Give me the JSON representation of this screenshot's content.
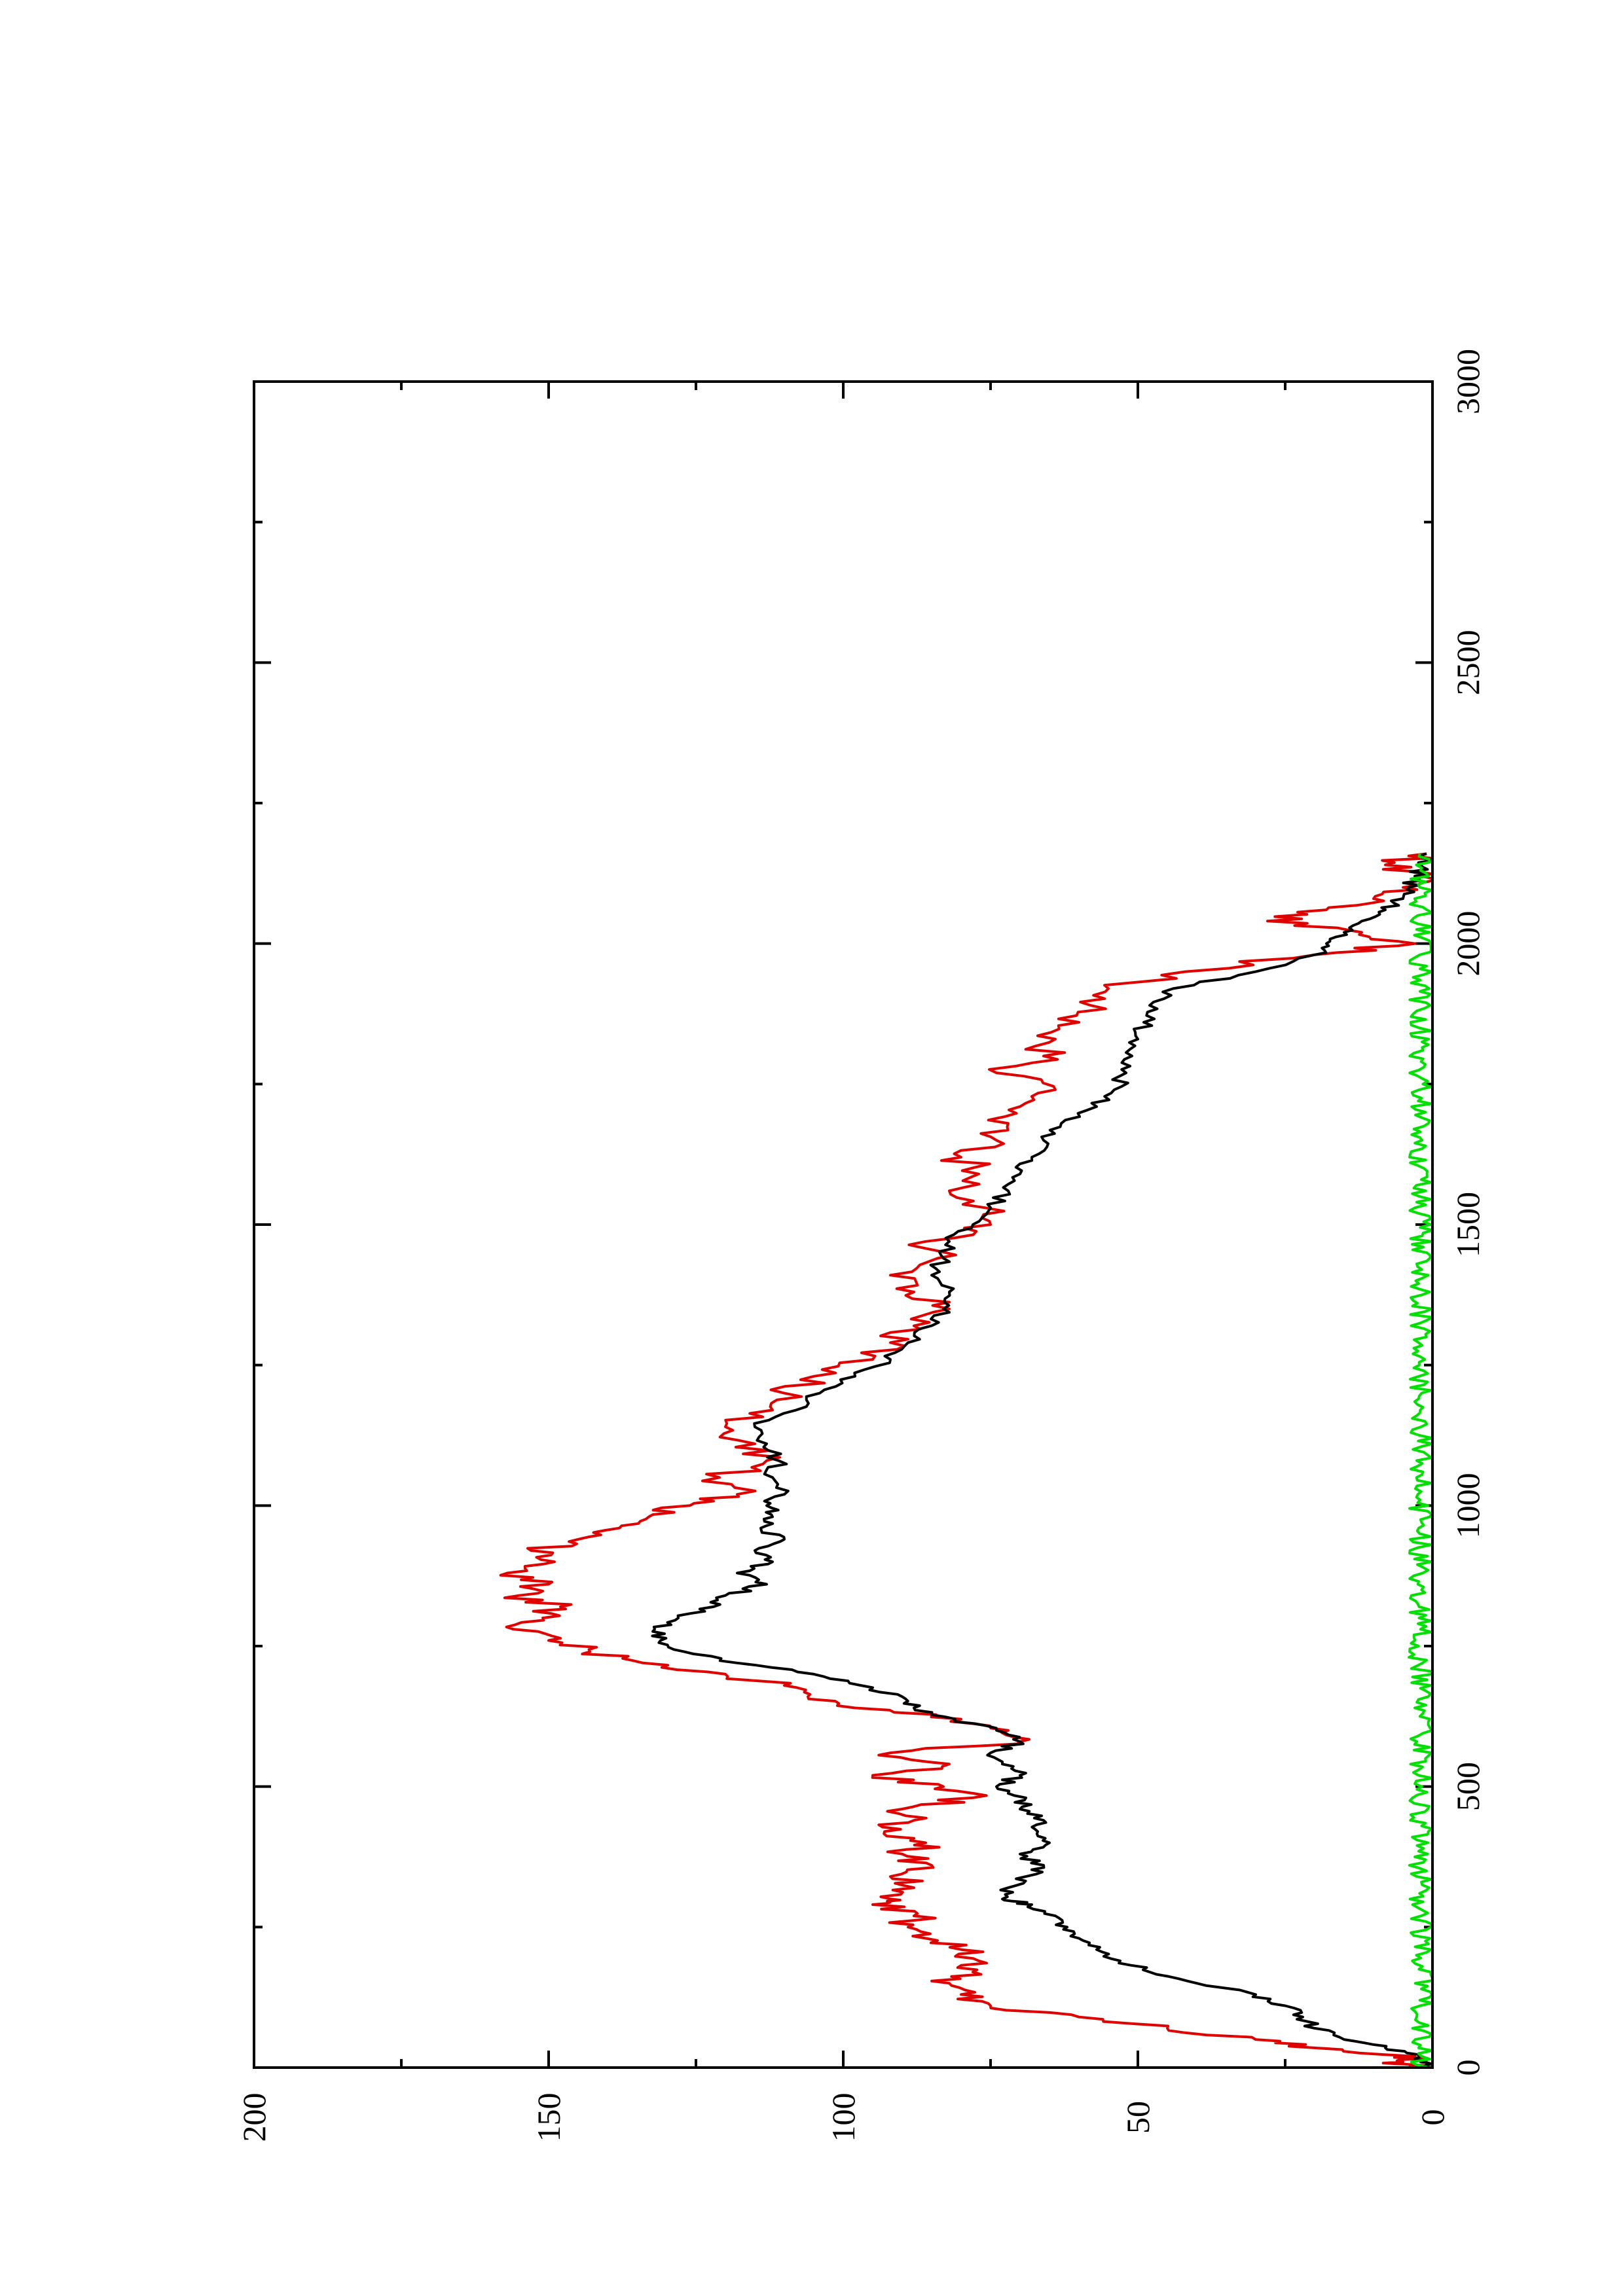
{
  "chart_data": {
    "type": "line",
    "orientation": "rotated-90-ccw",
    "xlim": [
      0,
      3000
    ],
    "ylim": [
      0,
      200
    ],
    "x_ticks": [
      "0",
      "500",
      "1000",
      "1500",
      "2000",
      "2500",
      "3000"
    ],
    "x_tick_values": [
      0,
      500,
      1000,
      1500,
      2000,
      2500,
      3000
    ],
    "x_minor_ticks": [
      250,
      750,
      1250,
      1750,
      2250,
      2750
    ],
    "y_ticks": [
      "0",
      "50",
      "100",
      "150",
      "200"
    ],
    "y_tick_values": [
      0,
      50,
      100,
      150,
      200
    ],
    "y_minor_ticks": [
      25,
      75,
      125,
      175
    ],
    "grid": false,
    "legend": "none",
    "series": [
      {
        "color": "#e00000",
        "x": [
          0,
          10,
          20,
          35,
          50,
          70,
          90,
          110,
          130,
          150,
          170,
          190,
          210,
          230,
          250,
          270,
          290,
          300,
          320,
          340,
          360,
          380,
          400,
          420,
          440,
          460,
          480,
          500,
          520,
          540,
          560,
          580,
          600,
          620,
          640,
          660,
          680,
          700,
          720,
          740,
          760,
          780,
          800,
          820,
          840,
          860,
          880,
          900,
          920,
          940,
          960,
          980,
          1000,
          1020,
          1050,
          1080,
          1110,
          1140,
          1170,
          1200,
          1230,
          1260,
          1290,
          1320,
          1350,
          1380,
          1410,
          1440,
          1470,
          1500,
          1530,
          1560,
          1590,
          1620,
          1650,
          1680,
          1710,
          1740,
          1770,
          1800,
          1830,
          1860,
          1890,
          1920,
          1950,
          1980,
          2000,
          2020,
          2040,
          2060,
          2080,
          2100,
          2120,
          2140,
          2160
        ],
        "values": [
          2,
          5,
          3,
          20,
          30,
          45,
          60,
          75,
          80,
          82,
          78,
          77,
          80,
          86,
          89,
          88,
          95,
          92,
          88,
          92,
          85,
          90,
          86,
          93,
          88,
          90,
          78,
          83,
          95,
          82,
          92,
          70,
          72,
          80,
          98,
          106,
          110,
          120,
          134,
          143,
          150,
          156,
          151,
          148,
          155,
          150,
          157,
          149,
          153,
          145,
          138,
          133,
          126,
          118,
          121,
          113,
          115,
          120,
          112,
          110,
          105,
          95,
          92,
          88,
          82,
          88,
          92,
          84,
          86,
          75,
          76,
          82,
          77,
          80,
          74,
          72,
          70,
          64,
          74,
          66,
          64,
          60,
          58,
          55,
          42,
          20,
          3,
          12,
          28,
          18,
          10,
          5,
          2,
          8,
          1
        ]
      },
      {
        "color": "#000000",
        "x": [
          0,
          10,
          20,
          35,
          50,
          70,
          90,
          110,
          130,
          150,
          170,
          190,
          210,
          230,
          250,
          270,
          290,
          300,
          320,
          340,
          360,
          380,
          400,
          420,
          440,
          460,
          480,
          500,
          520,
          540,
          560,
          580,
          600,
          620,
          640,
          660,
          680,
          700,
          720,
          740,
          760,
          780,
          800,
          820,
          840,
          860,
          880,
          900,
          920,
          940,
          960,
          980,
          1000,
          1020,
          1050,
          1080,
          1110,
          1140,
          1170,
          1200,
          1230,
          1260,
          1290,
          1320,
          1350,
          1380,
          1410,
          1440,
          1470,
          1500,
          1530,
          1560,
          1590,
          1620,
          1650,
          1680,
          1710,
          1740,
          1770,
          1800,
          1830,
          1860,
          1890,
          1920,
          1950,
          1980,
          2000,
          2020,
          2040,
          2060,
          2080,
          2100,
          2120,
          2140,
          2160
        ],
        "values": [
          1,
          2,
          2,
          8,
          15,
          20,
          22,
          25,
          30,
          40,
          48,
          53,
          57,
          60,
          62,
          64,
          68,
          73,
          72,
          69,
          66,
          70,
          65,
          67,
          66,
          70,
          69,
          74,
          70,
          73,
          75,
          70,
          74,
          81,
          88,
          90,
          97,
          105,
          118,
          127,
          131,
          132,
          128,
          122,
          120,
          113,
          118,
          112,
          115,
          110,
          114,
          112,
          113,
          110,
          112,
          111,
          113,
          115,
          108,
          104,
          98,
          92,
          89,
          85,
          83,
          82,
          85,
          83,
          82,
          78,
          75,
          72,
          70,
          68,
          66,
          63,
          57,
          54,
          52,
          51,
          50,
          49,
          48,
          44,
          30,
          20,
          18,
          15,
          12,
          8,
          5,
          4,
          3,
          2,
          1
        ]
      },
      {
        "color": "#00e000",
        "x_start": 0,
        "x_end": 2160,
        "step": 5,
        "values_range": [
          0,
          4
        ]
      }
    ]
  }
}
